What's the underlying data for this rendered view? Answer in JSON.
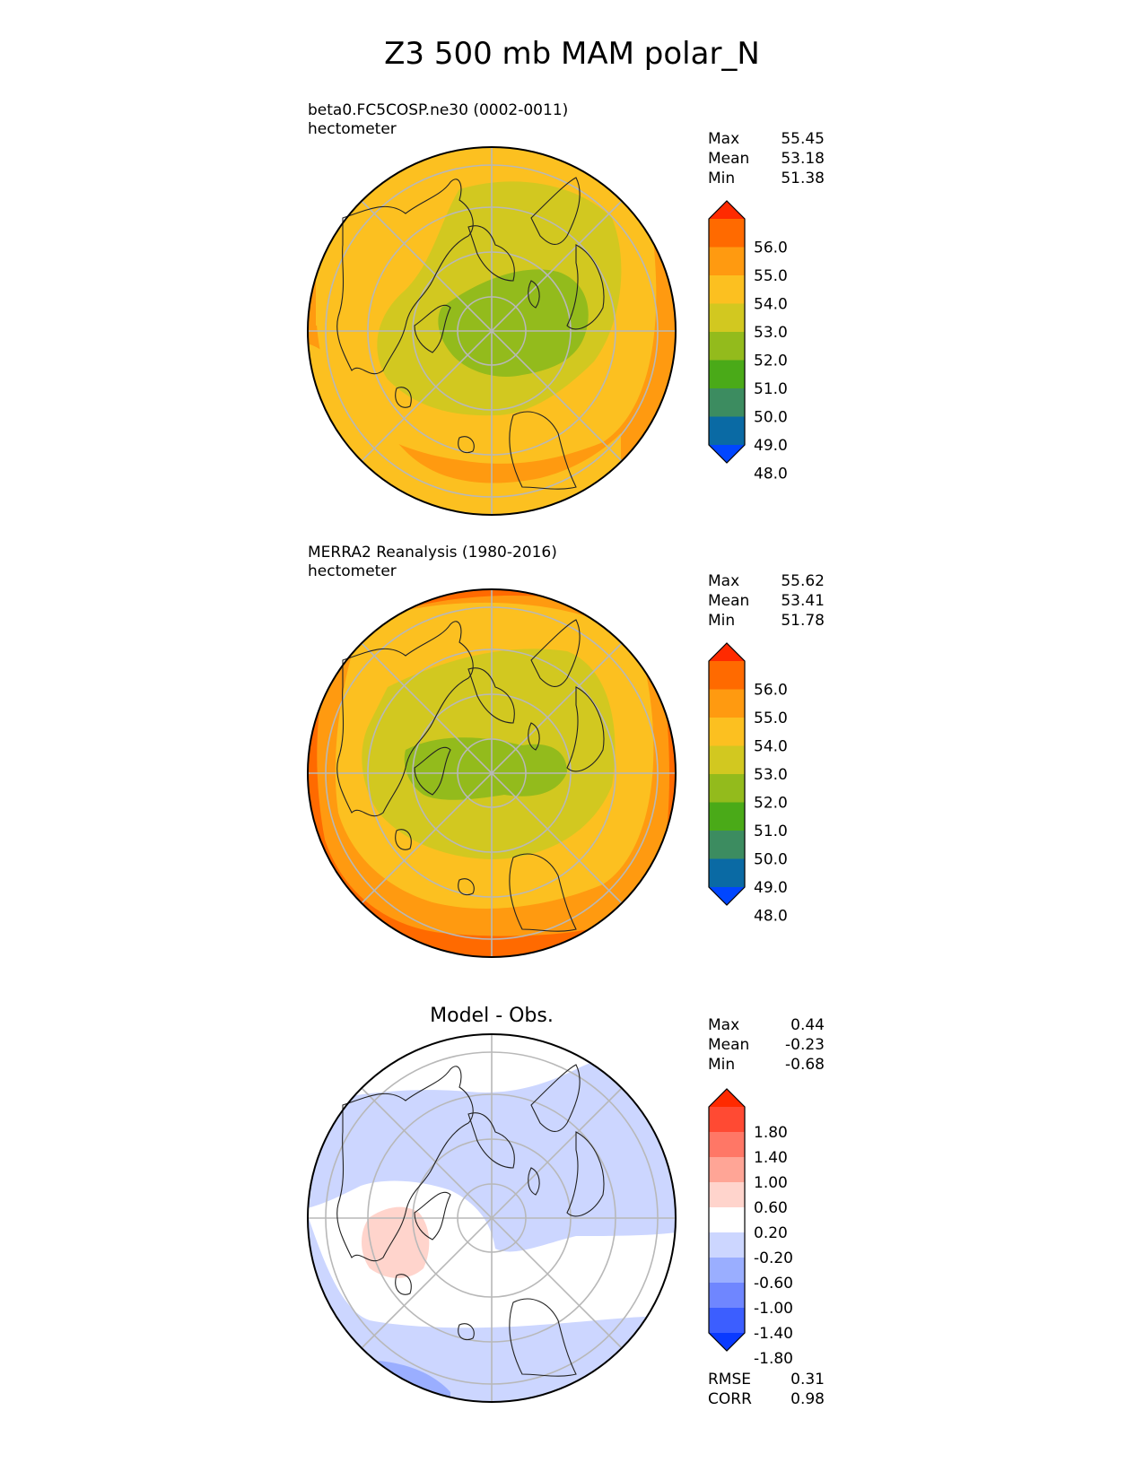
{
  "figure": {
    "title": "Z3 500 mb MAM polar_N"
  },
  "panels": [
    {
      "name": "test",
      "caption_line1": "beta0.FC5COSP.ne30 (0002-0011)",
      "caption_line2": "hectometer",
      "stats": [
        {
          "label": "Max",
          "value": "55.45"
        },
        {
          "label": "Mean",
          "value": "53.18"
        },
        {
          "label": "Min",
          "value": "51.38"
        }
      ]
    },
    {
      "name": "reference",
      "caption_line1": "MERRA2 Reanalysis (1980-2016)",
      "caption_line2": "hectometer",
      "stats": [
        {
          "label": "Max",
          "value": "55.62"
        },
        {
          "label": "Mean",
          "value": "53.41"
        },
        {
          "label": "Min",
          "value": "51.78"
        }
      ]
    },
    {
      "name": "difference",
      "caption_title": "Model - Obs.",
      "stats": [
        {
          "label": "Max",
          "value": "0.44"
        },
        {
          "label": "Mean",
          "value": "-0.23"
        },
        {
          "label": "Min",
          "value": "-0.68"
        }
      ],
      "metrics": [
        {
          "label": "RMSE",
          "value": "0.31"
        },
        {
          "label": "CORR",
          "value": "0.98"
        }
      ]
    }
  ],
  "chart_data": [
    {
      "type": "heatmap",
      "projection": "north polar stereographic",
      "variable": "Z3 500 mb",
      "units": "hectometer",
      "colorbar": {
        "ticks": [
          "56.0",
          "55.0",
          "54.0",
          "53.0",
          "52.0",
          "51.0",
          "50.0",
          "49.0",
          "48.0"
        ],
        "colors_top_to_bottom": [
          "#ff2a00",
          "#ff6a00",
          "#ff9a10",
          "#fcc020",
          "#d2c820",
          "#93bb1c",
          "#4aaa18",
          "#3c8c60",
          "#0a6aa4",
          "#0046ff"
        ],
        "extend": "both"
      },
      "stats": {
        "max": 55.45,
        "mean": 53.18,
        "min": 51.38
      }
    },
    {
      "type": "heatmap",
      "projection": "north polar stereographic",
      "variable": "Z3 500 mb",
      "units": "hectometer",
      "colorbar": {
        "ticks": [
          "56.0",
          "55.0",
          "54.0",
          "53.0",
          "52.0",
          "51.0",
          "50.0",
          "49.0",
          "48.0"
        ],
        "colors_top_to_bottom": [
          "#ff2a00",
          "#ff6a00",
          "#ff9a10",
          "#fcc020",
          "#d2c820",
          "#93bb1c",
          "#4aaa18",
          "#3c8c60",
          "#0a6aa4",
          "#0046ff"
        ],
        "extend": "both"
      },
      "stats": {
        "max": 55.62,
        "mean": 53.41,
        "min": 51.78
      }
    },
    {
      "type": "heatmap",
      "projection": "north polar stereographic",
      "units": "hectometer",
      "colorbar": {
        "ticks": [
          "1.80",
          "1.40",
          "1.00",
          "0.60",
          "0.20",
          "-0.20",
          "-0.60",
          "-1.00",
          "-1.40",
          "-1.80"
        ],
        "colors_top_to_bottom": [
          "#ff2a00",
          "#ff4a33",
          "#ff7766",
          "#ffa596",
          "#ffd4cc",
          "#ffffff",
          "#ccd6ff",
          "#9aaeff",
          "#6f86ff",
          "#3c5eff",
          "#0a3aff"
        ],
        "extend": "both"
      },
      "stats": {
        "max": 0.44,
        "mean": -0.23,
        "min": -0.68,
        "rmse": 0.31,
        "corr": 0.98
      }
    }
  ]
}
